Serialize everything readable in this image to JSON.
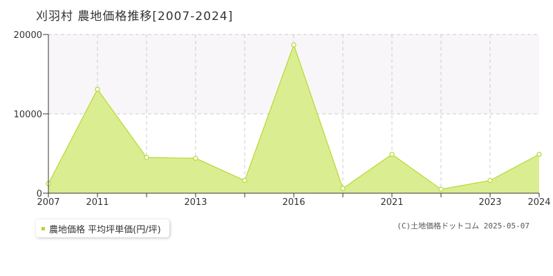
{
  "title": "刈羽村  農地価格推移[2007-2024]",
  "legend": {
    "label": "農地価格 平均坪単価(円/坪)"
  },
  "copyright": "(C)土地価格ドットコム 2025-05-07",
  "colors": {
    "fill": "#dbed91",
    "line": "#b5d932",
    "band": "#f8f6f8",
    "grid": "#cccccc"
  },
  "chart_data": {
    "type": "area",
    "x": [
      2007,
      2011,
      2012,
      2013,
      2015,
      2016,
      2018,
      2021,
      2022,
      2023,
      2024
    ],
    "x_positions": [
      2007,
      2009,
      2011,
      2013,
      2015,
      2017,
      2019,
      2021,
      2023,
      2025,
      2027
    ],
    "series": [
      {
        "values": [
          1200,
          13100,
          4500,
          4400,
          1600,
          18700,
          600,
          4900,
          500,
          1600,
          4900
        ]
      }
    ],
    "xtick_labels": [
      "2007",
      "2011",
      "2013",
      "2016",
      "2021",
      "2023",
      "2024"
    ],
    "xtick_positions": [
      2007,
      2009,
      2013,
      2017,
      2021,
      2025,
      2027
    ],
    "yticks": [
      0,
      10000,
      20000
    ],
    "ylim": [
      0,
      20000
    ],
    "xlim": [
      2007,
      2027
    ],
    "grid": true
  }
}
